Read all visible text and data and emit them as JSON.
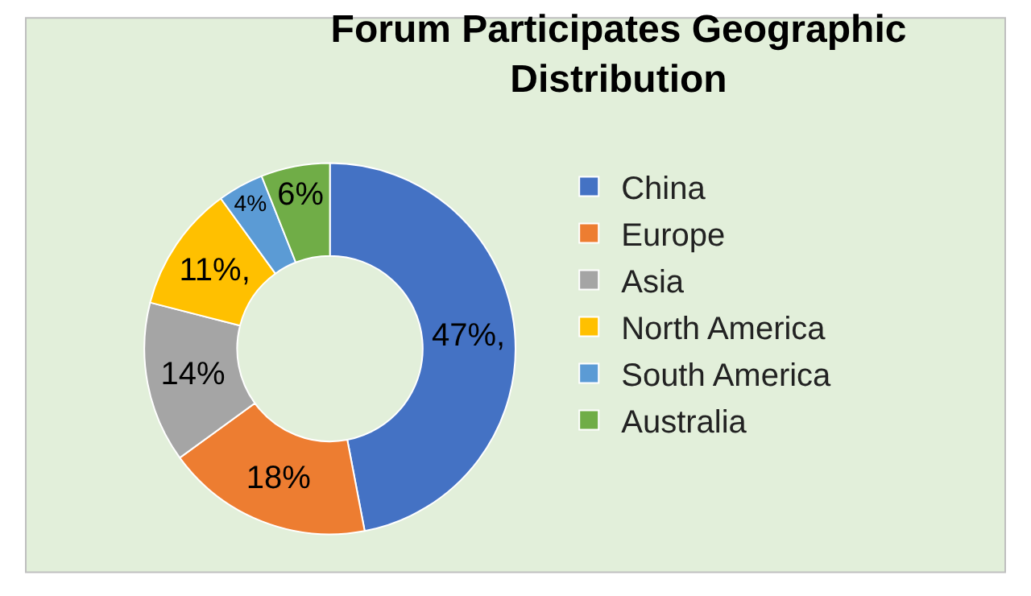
{
  "chart_data": {
    "type": "donut",
    "title": "Forum Participates Geographic Distribution",
    "categories": [
      "China",
      "Europe",
      "Asia",
      "North America",
      "South America",
      "Australia"
    ],
    "values": [
      47,
      18,
      14,
      11,
      4,
      6
    ],
    "colors": [
      "#4472c4",
      "#ed7d31",
      "#a5a5a5",
      "#ffc000",
      "#5b9bd5",
      "#70ad47"
    ],
    "value_labels": [
      "47%,",
      "18%",
      "14%",
      "11%,",
      "4%",
      "6%"
    ],
    "legend": "right"
  }
}
